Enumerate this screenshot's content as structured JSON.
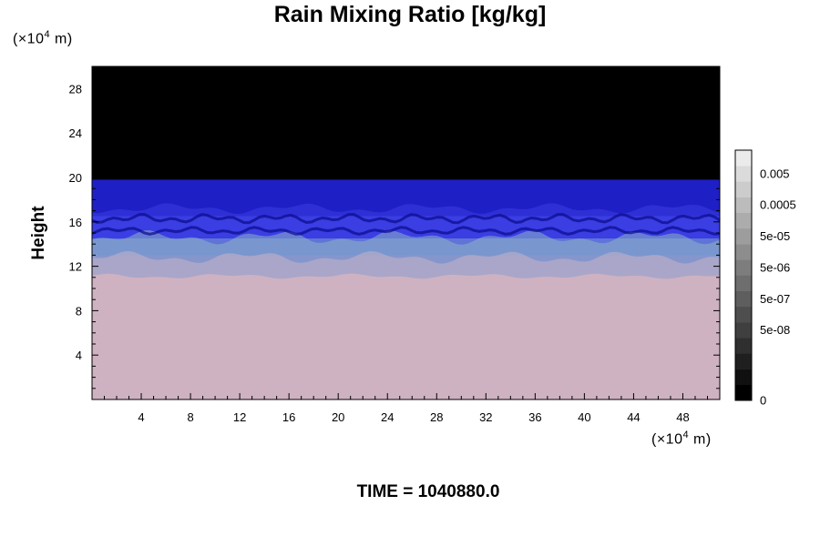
{
  "chart_data": {
    "type": "heatmap",
    "title": "Rain Mixing Ratio [kg/kg]",
    "ylabel": "Height",
    "x_unit": {
      "prefix": "(×10",
      "exp": "4",
      "suffix": " m)"
    },
    "y_unit": {
      "prefix": "(×10",
      "exp": "4",
      "suffix": " m)"
    },
    "xlim": [
      0,
      51
    ],
    "ylim": [
      0,
      30
    ],
    "x_ticks": [
      4,
      8,
      12,
      16,
      20,
      24,
      28,
      32,
      36,
      40,
      44,
      48
    ],
    "y_ticks": [
      4,
      8,
      12,
      16,
      20,
      24,
      28
    ],
    "colorbar_labels": [
      "0.005",
      "0.0005",
      "5e-05",
      "5e-06",
      "5e-07",
      "5e-08",
      "0"
    ],
    "colorbar_levels": 16,
    "field_layers": [
      {
        "from_height": 0,
        "to_height": 11,
        "color": "#ecbcbc"
      },
      {
        "from_height": 11,
        "to_height": 13,
        "color": "#c7b4c6"
      },
      {
        "from_height": 13,
        "to_height": 14.5,
        "color": "#8eb3c7"
      },
      {
        "from_height": 14.5,
        "to_height": 16.5,
        "color": "#3b3ee3"
      },
      {
        "from_height": 16.5,
        "to_height": 19.8,
        "color": "#1f1fc6"
      },
      {
        "from_height": 19.8,
        "to_height": 30,
        "color": "#000000"
      }
    ]
  },
  "time_label": "TIME = 1040880.0",
  "colors": {
    "sky": "#000000",
    "deep_blue": "#1f1fc6",
    "bright_blue": "#3b3ee3",
    "teal": "#8eb3c7",
    "mauve": "#c7b4c6",
    "pink": "#ecbcbc"
  }
}
